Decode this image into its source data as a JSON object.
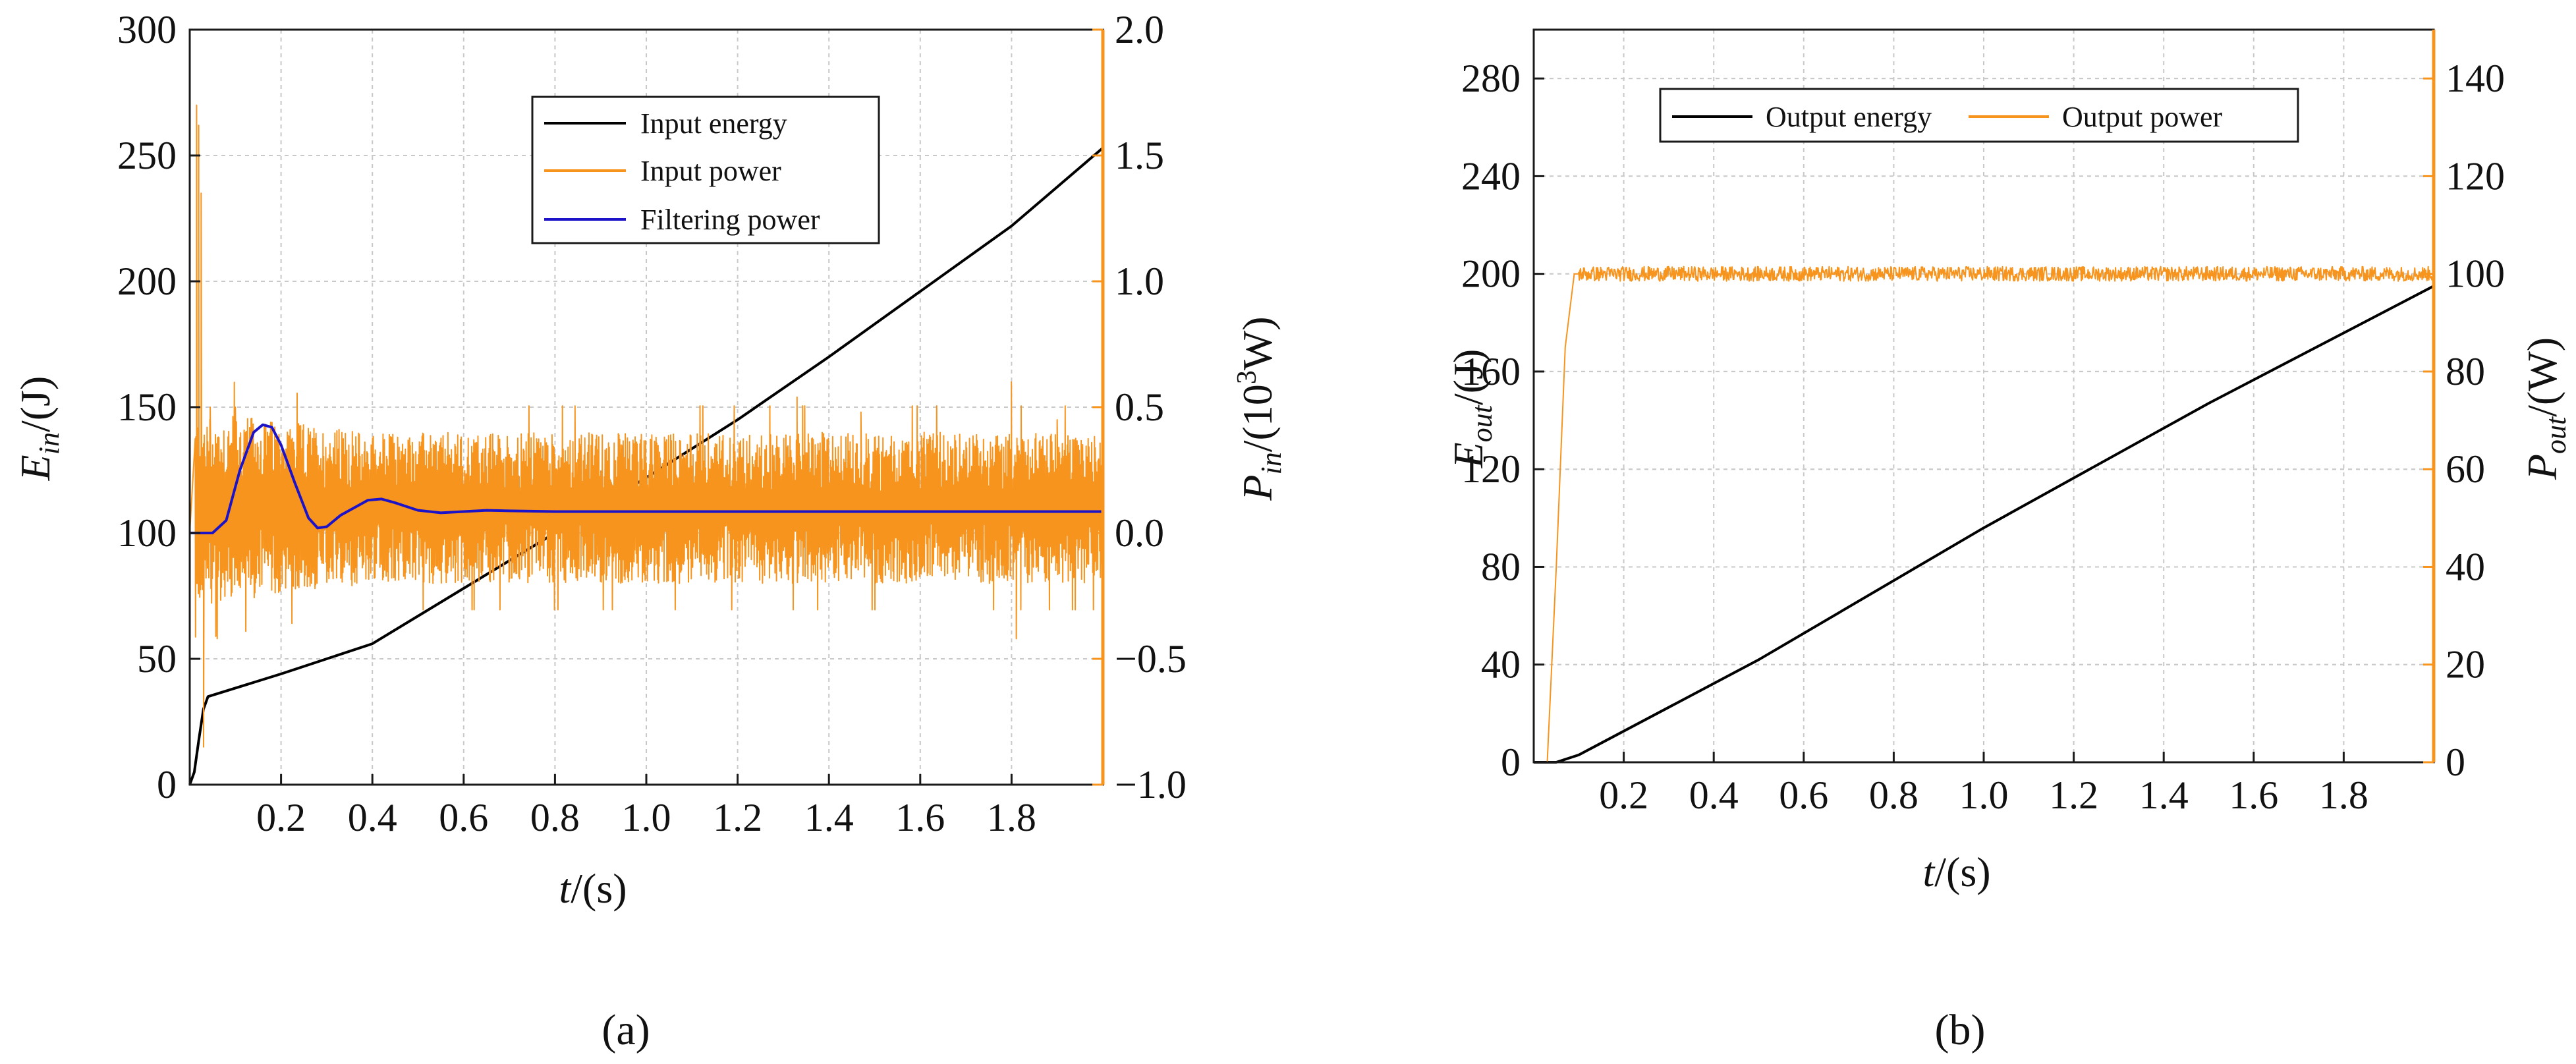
{
  "colors": {
    "energy": "#000000",
    "power": "#f7941d",
    "filter": "#1c13c9",
    "orange_axis": "#f7941d",
    "axis": "#1a1a1a",
    "grid": "#c9c9c9"
  },
  "chart_data": [
    {
      "type": "line",
      "panel_label": "(a)",
      "xlabel": {
        "var": "t",
        "unit": "/(s)"
      },
      "ylabel_left": {
        "var": "E",
        "sub": "in",
        "unit": "/(J)"
      },
      "ylabel_right": {
        "var": "P",
        "sub": "in",
        "unit_pre": "/(10",
        "unit_sup": "3",
        "unit_post": "W)"
      },
      "xlim": [
        0,
        2.0
      ],
      "ylim_left": [
        0,
        300
      ],
      "ylim_right": [
        -1.0,
        2.0
      ],
      "x_ticks": [
        0.2,
        0.4,
        0.6,
        0.8,
        1.0,
        1.2,
        1.4,
        1.6,
        1.8
      ],
      "x_tick_labels": [
        "0.2",
        "0.4",
        "0.6",
        "0.8",
        "1.0",
        "1.2",
        "1.4",
        "1.6",
        "1.8"
      ],
      "y_left_ticks": [
        0,
        50,
        100,
        150,
        200,
        250,
        300
      ],
      "y_left_tick_labels": [
        "0",
        "50",
        "100",
        "150",
        "200",
        "250",
        "300"
      ],
      "y_right_ticks": [
        -1.0,
        -0.5,
        0.0,
        0.5,
        1.0,
        1.5,
        2.0
      ],
      "y_right_tick_labels": [
        "−1.0",
        "−0.5",
        "0.0",
        "0.5",
        "1.0",
        "1.5",
        "2.0"
      ],
      "grid": true,
      "legend": {
        "position": "top-center",
        "entries": [
          {
            "label": "Input energy",
            "series": "energy"
          },
          {
            "label": "Input power",
            "series": "power"
          },
          {
            "label": "Filtering power",
            "series": "filter"
          }
        ]
      },
      "series": [
        {
          "name": "Input energy",
          "key": "energy",
          "axis": "left",
          "x": [
            0,
            0.01,
            0.02,
            0.03,
            0.04,
            0.2,
            0.4,
            0.6,
            0.8,
            1.0,
            1.2,
            1.4,
            1.6,
            1.8,
            2.0
          ],
          "y": [
            0,
            5,
            18,
            30,
            35,
            44,
            56,
            78,
            100,
            122,
            145,
            170,
            196,
            222,
            253
          ]
        },
        {
          "name": "Input power",
          "key": "power",
          "axis": "right",
          "noisy": true,
          "baseline": 0.1,
          "spikes": [
            [
              0.015,
              1.7
            ],
            [
              0.02,
              1.62
            ],
            [
              0.025,
              1.35
            ],
            [
              0.03,
              -0.85
            ],
            [
              0.045,
              0.5
            ],
            [
              0.06,
              -0.42
            ],
            [
              0.1,
              0.5
            ],
            [
              0.17,
              0.4
            ],
            [
              1.33,
              0.54
            ],
            [
              1.47,
              0.48
            ],
            [
              1.8,
              0.6
            ],
            [
              1.81,
              -0.42
            ],
            [
              1.9,
              0.45
            ]
          ],
          "envelope": [
            [
              0.05,
              0.38
            ],
            [
              0.4,
              0.3
            ],
            [
              1.0,
              0.3
            ],
            [
              2.0,
              0.3
            ]
          ]
        },
        {
          "name": "Filtering power",
          "key": "filter",
          "axis": "right",
          "x": [
            0,
            0.05,
            0.08,
            0.11,
            0.14,
            0.16,
            0.18,
            0.2,
            0.23,
            0.26,
            0.28,
            0.3,
            0.33,
            0.36,
            0.39,
            0.42,
            0.45,
            0.5,
            0.55,
            0.6,
            0.65,
            0.7,
            0.8,
            2.0
          ],
          "y": [
            0.0,
            0.0,
            0.05,
            0.25,
            0.4,
            0.43,
            0.42,
            0.35,
            0.2,
            0.06,
            0.02,
            0.025,
            0.07,
            0.1,
            0.13,
            0.135,
            0.12,
            0.09,
            0.08,
            0.085,
            0.09,
            0.088,
            0.085,
            0.085
          ]
        }
      ]
    },
    {
      "type": "line",
      "panel_label": "(b)",
      "xlabel": {
        "var": "t",
        "unit": "/(s)"
      },
      "ylabel_left": {
        "var": "E",
        "sub": "out",
        "unit": "/(J)"
      },
      "ylabel_right": {
        "var": "P",
        "sub": "out",
        "unit": "/(W)"
      },
      "xlim": [
        0,
        2.0
      ],
      "ylim_left": [
        0,
        300
      ],
      "ylim_right": [
        0,
        150
      ],
      "x_ticks": [
        0.2,
        0.4,
        0.6,
        0.8,
        1.0,
        1.2,
        1.4,
        1.6,
        1.8
      ],
      "x_tick_labels": [
        "0.2",
        "0.4",
        "0.6",
        "0.8",
        "1.0",
        "1.2",
        "1.4",
        "1.6",
        "1.8"
      ],
      "y_left_ticks": [
        0,
        40,
        80,
        120,
        160,
        200,
        240,
        280
      ],
      "y_left_tick_labels": [
        "0",
        "40",
        "80",
        "120",
        "160",
        "200",
        "240",
        "280"
      ],
      "y_right_ticks": [
        0,
        20,
        40,
        60,
        80,
        100,
        120,
        140
      ],
      "y_right_tick_labels": [
        "0",
        "20",
        "40",
        "60",
        "80",
        "100",
        "120",
        "140"
      ],
      "grid": true,
      "legend": {
        "position": "top-center",
        "entries": [
          {
            "label": "Output energy",
            "series": "energy"
          },
          {
            "label": "Output power",
            "series": "power"
          }
        ]
      },
      "series": [
        {
          "name": "Output energy",
          "key": "energy",
          "axis": "left",
          "x": [
            0,
            0.05,
            0.1,
            0.5,
            1.0,
            1.5,
            2.0
          ],
          "y": [
            0,
            0,
            3,
            42,
            96,
            147,
            195
          ]
        },
        {
          "name": "Output power",
          "key": "power",
          "axis": "right",
          "noisy": true,
          "x": [
            0,
            0.03,
            0.05,
            0.07,
            0.09,
            0.1,
            2.0
          ],
          "y": [
            0,
            0,
            40,
            85,
            100,
            100,
            100
          ],
          "noise_after": 0.1,
          "noise_amplitude": 1.5
        }
      ]
    }
  ]
}
